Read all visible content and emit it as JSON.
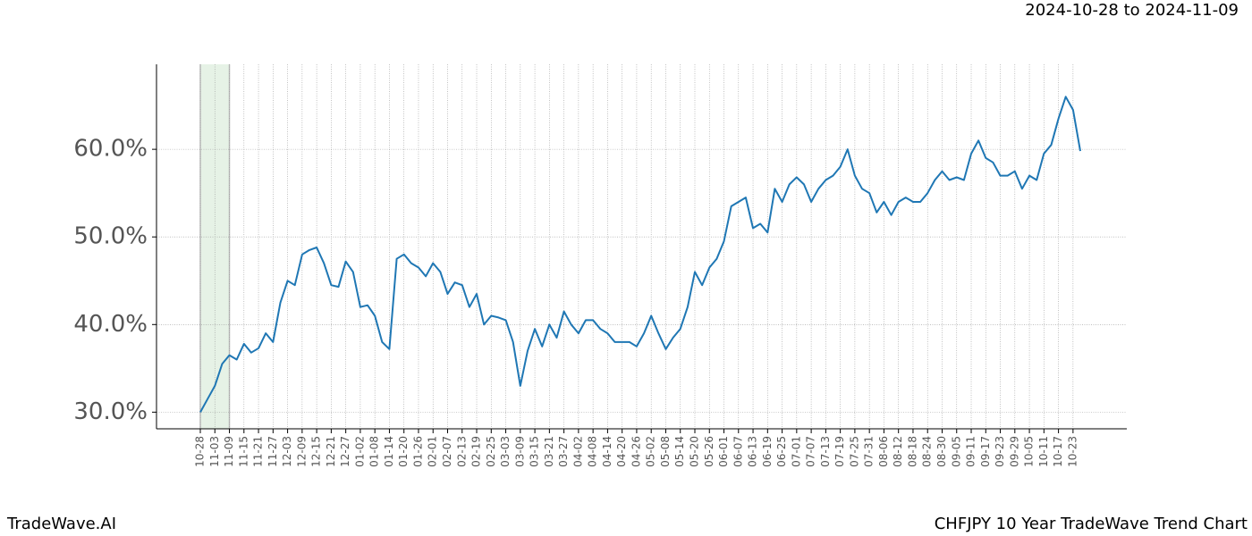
{
  "chart_data": {
    "type": "line",
    "title": "CHFJPY 10 Year TradeWave Trend Chart",
    "subtitle": "2024-10-28 to 2024-11-09",
    "brand": "TradeWave.AI",
    "highlight": [
      "10-28",
      "11-09"
    ],
    "highlight_color": "#e6f2e6",
    "categories": [
      "10-28",
      null,
      "11-03",
      null,
      "11-09",
      null,
      "11-15",
      null,
      "11-21",
      null,
      "11-27",
      null,
      "12-03",
      null,
      "12-09",
      null,
      "12-15",
      null,
      "12-21",
      null,
      "12-27",
      null,
      "01-02",
      null,
      "01-08",
      null,
      "01-14",
      null,
      "01-20",
      null,
      "01-26",
      null,
      "02-01",
      null,
      "02-07",
      null,
      "02-13",
      null,
      "02-19",
      null,
      "02-25",
      null,
      "03-03",
      null,
      "03-09",
      null,
      "03-15",
      null,
      "03-21",
      null,
      "03-27",
      null,
      "04-02",
      null,
      "04-08",
      null,
      "04-14",
      null,
      "04-20",
      null,
      "04-26",
      null,
      "05-02",
      null,
      "05-08",
      null,
      "05-14",
      null,
      "05-20",
      null,
      "05-26",
      null,
      "06-01",
      null,
      "06-07",
      null,
      "06-13",
      null,
      "06-19",
      null,
      "06-25",
      null,
      "07-01",
      null,
      "07-07",
      null,
      "07-13",
      null,
      "07-19",
      null,
      "07-25",
      null,
      "07-31",
      null,
      "08-06",
      null,
      "08-12",
      null,
      "08-18",
      null,
      "08-24",
      null,
      "08-30",
      null,
      "09-05",
      null,
      "09-11",
      null,
      "09-17",
      null,
      "09-23",
      null,
      "09-29",
      null,
      "10-05",
      null,
      "10-11",
      null,
      "10-17",
      null,
      "10-23",
      null
    ],
    "series": [
      {
        "color": "#1f77b4",
        "values": [
          30.0,
          31.5,
          33.0,
          35.5,
          36.5,
          36.0,
          37.8,
          36.8,
          37.3,
          39.0,
          38.0,
          42.5,
          45.0,
          44.5,
          48.0,
          48.5,
          48.8,
          47.0,
          44.5,
          44.3,
          47.2,
          46.0,
          42.0,
          42.2,
          41.0,
          38.0,
          37.2,
          47.5,
          48.0,
          47.0,
          46.5,
          45.5,
          47.0,
          46.0,
          43.5,
          44.8,
          44.5,
          42.0,
          43.5,
          40.0,
          41.0,
          40.8,
          40.5,
          38.0,
          33.0,
          37.0,
          39.5,
          37.5,
          40.0,
          38.5,
          41.5,
          40.0,
          39.0,
          40.5,
          40.5,
          39.5,
          39.0,
          38.0,
          38.0,
          38.0,
          37.5,
          39.0,
          41.0,
          39.0,
          37.2,
          38.5,
          39.5,
          42.0,
          46.0,
          44.5,
          46.5,
          47.5,
          49.5,
          53.5,
          54.0,
          54.5,
          51.0,
          51.5,
          50.5,
          55.5,
          54.0,
          56.0,
          56.8,
          56.0,
          54.0,
          55.5,
          56.5,
          57.0,
          58.0,
          60.0,
          57.0,
          55.5,
          55.0,
          52.8,
          54.0,
          52.5,
          54.0,
          54.5,
          54.0,
          54.0,
          55.0,
          56.5,
          57.5,
          56.5,
          56.8,
          56.5,
          59.5,
          61.0,
          59.0,
          58.5,
          57.0,
          57.0,
          57.5,
          55.5,
          57.0,
          56.5,
          59.5,
          60.5,
          63.5,
          66.0,
          64.5,
          59.8
        ]
      }
    ],
    "ylim": [
      28.1,
      69.7
    ],
    "yticks": [
      {
        "value": 30,
        "label": "30.0%"
      },
      {
        "value": 40,
        "label": "40.0%"
      },
      {
        "value": 50,
        "label": "50.0%"
      },
      {
        "value": 60,
        "label": "60.0%"
      }
    ],
    "grid": true
  }
}
